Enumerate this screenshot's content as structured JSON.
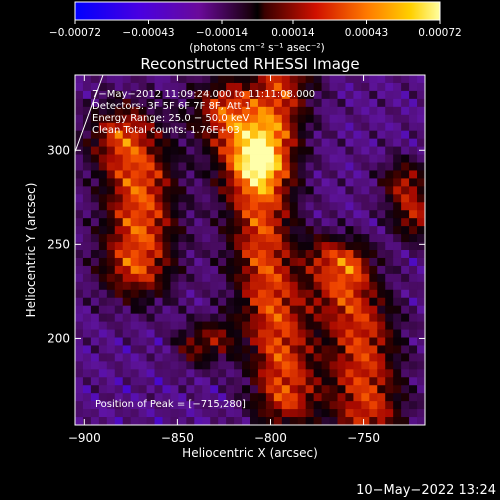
{
  "chart_data": {
    "type": "heatmap",
    "title": "Reconstructed RHESSI Image",
    "xlabel": "Heliocentric X (arcsec)",
    "ylabel": "Heliocentric Y (arcsec)",
    "xlim": [
      -905,
      -717
    ],
    "ylim": [
      154,
      340
    ],
    "x_ticks": [
      {
        "value": -900,
        "label": "−900"
      },
      {
        "value": -850,
        "label": "−850"
      },
      {
        "value": -800,
        "label": "−800"
      },
      {
        "value": -750,
        "label": "−750"
      }
    ],
    "y_ticks": [
      {
        "value": 200,
        "label": "200"
      },
      {
        "value": 250,
        "label": "250"
      },
      {
        "value": 300,
        "label": "300"
      }
    ],
    "colorbar": {
      "unit": "(photons cm⁻² s⁻¹ asec⁻²)",
      "range": [
        -0.00072,
        0.00072
      ],
      "ticks": [
        {
          "value": -0.00072,
          "label": "−0.00072"
        },
        {
          "value": -0.00043,
          "label": "−0.00043"
        },
        {
          "value": -0.00014,
          "label": "−0.00014"
        },
        {
          "value": 0.00014,
          "label": "0.00014"
        },
        {
          "value": 0.00043,
          "label": "0.00043"
        },
        {
          "value": 0.00072,
          "label": "0.00072"
        }
      ]
    },
    "annotations": [
      "7−May−2012 11:09:24.000 to 11:11:08.000",
      "Detectors: 3F 5F 6F 7F 8F, Att 1",
      "Energy Range: 25.0 − 50.0 keV",
      "Clean     Total counts: 1.76E+03"
    ],
    "peak_label": "Position of Peak = [−715,280]",
    "peak": {
      "x": -715,
      "y": 280
    },
    "ridges": [
      {
        "points": [
          [
            -878,
            305
          ],
          [
            -871,
            285
          ],
          [
            -870,
            260
          ],
          [
            -872,
            240
          ]
        ],
        "width": 14,
        "strength": 0.00072
      },
      {
        "points": [
          [
            -824,
            320
          ],
          [
            -813,
            300
          ],
          [
            -806,
            270
          ],
          [
            -804,
            245
          ],
          [
            -800,
            220
          ],
          [
            -795,
            195
          ],
          [
            -792,
            170
          ]
        ],
        "width": 13,
        "strength": 0.00068
      },
      {
        "points": [
          [
            -793,
            340
          ],
          [
            -797,
            318
          ],
          [
            -802,
            296
          ]
        ],
        "width": 12,
        "strength": 0.0006
      },
      {
        "points": [
          [
            -760,
            225
          ],
          [
            -752,
            205
          ],
          [
            -750,
            180
          ],
          [
            -748,
            162
          ]
        ],
        "width": 14,
        "strength": 0.00065
      },
      {
        "points": [
          [
            -728,
            282
          ],
          [
            -722,
            265
          ]
        ],
        "width": 9,
        "strength": 0.00055
      },
      {
        "points": [
          [
            -840,
            196
          ],
          [
            -830,
            200
          ]
        ],
        "width": 8,
        "strength": 0.00045
      },
      {
        "points": [
          [
            -770,
            245
          ],
          [
            -758,
            242
          ]
        ],
        "width": 8,
        "strength": 0.0004
      }
    ]
  },
  "footer": {
    "date": "10−May−2022 13:24"
  }
}
